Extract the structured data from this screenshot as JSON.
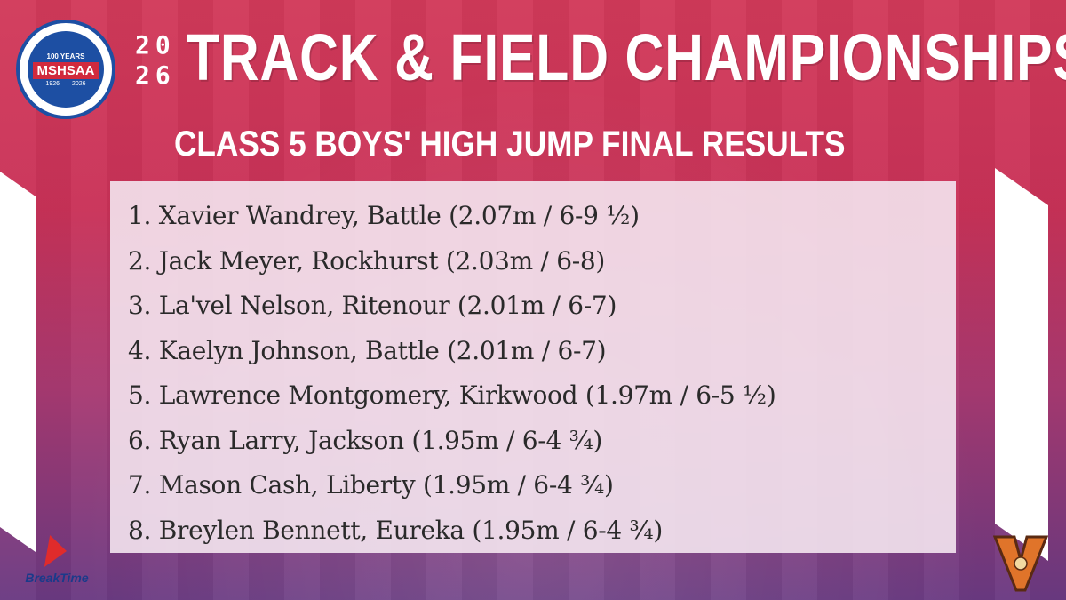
{
  "header": {
    "year_top": "20",
    "year_bottom": "26",
    "title": "TRACK & FIELD CHAMPIONSHIPS",
    "subtitle": "CLASS 5 BOYS' HIGH JUMP FINAL RESULTS"
  },
  "logo": {
    "top_text": "100 YEARS",
    "name": "MSHSAA",
    "year_start": "1926",
    "year_end": "2026"
  },
  "results": [
    "1. Xavier Wandrey, Battle (2.07m / 6-9 ½)",
    "2. Jack Meyer, Rockhurst (2.03m / 6-8)",
    "3. La'vel Nelson, Ritenour (2.01m / 6-7)",
    "4. Kaelyn Johnson, Battle (2.01m / 6-7)",
    "5. Lawrence Montgomery, Kirkwood (1.97m / 6-5 ½)",
    "6. Ryan Larry, Jackson (1.95m / 6-4 ¾)",
    "7. Mason Cash, Liberty (1.95m / 6-4 ¾)",
    "8. Breylen Bennett, Eureka (1.95m / 6-4 ¾)"
  ],
  "sponsor": {
    "name": "BreakTime"
  },
  "colors": {
    "accent": "#d23a5a",
    "logo_blue": "#1d4fa3",
    "school_orange": "#e0742a"
  }
}
